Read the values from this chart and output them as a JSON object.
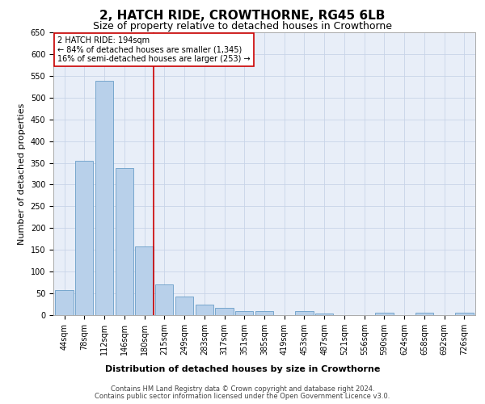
{
  "title": "2, HATCH RIDE, CROWTHORNE, RG45 6LB",
  "subtitle": "Size of property relative to detached houses in Crowthorne",
  "xlabel": "Distribution of detached houses by size in Crowthorne",
  "ylabel": "Number of detached properties",
  "categories": [
    "44sqm",
    "78sqm",
    "112sqm",
    "146sqm",
    "180sqm",
    "215sqm",
    "249sqm",
    "283sqm",
    "317sqm",
    "351sqm",
    "385sqm",
    "419sqm",
    "453sqm",
    "487sqm",
    "521sqm",
    "556sqm",
    "590sqm",
    "624sqm",
    "658sqm",
    "692sqm",
    "726sqm"
  ],
  "values": [
    58,
    355,
    538,
    338,
    157,
    70,
    42,
    25,
    16,
    10,
    10,
    0,
    10,
    3,
    0,
    0,
    5,
    0,
    5,
    0,
    5
  ],
  "bar_color": "#b8d0ea",
  "bar_edge_color": "#6a9ec8",
  "highlight_index": 4,
  "highlight_line_color": "#cc0000",
  "annotation_text": "2 HATCH RIDE: 194sqm\n← 84% of detached houses are smaller (1,345)\n16% of semi-detached houses are larger (253) →",
  "annotation_box_color": "#ffffff",
  "annotation_box_edge_color": "#cc0000",
  "ylim": [
    0,
    650
  ],
  "yticks": [
    0,
    50,
    100,
    150,
    200,
    250,
    300,
    350,
    400,
    450,
    500,
    550,
    600,
    650
  ],
  "footer_line1": "Contains HM Land Registry data © Crown copyright and database right 2024.",
  "footer_line2": "Contains public sector information licensed under the Open Government Licence v3.0.",
  "background_color": "#ffffff",
  "plot_bg_color": "#e8eef8",
  "grid_color": "#c8d4e8",
  "title_fontsize": 11,
  "subtitle_fontsize": 9,
  "xlabel_fontsize": 8,
  "ylabel_fontsize": 8,
  "tick_fontsize": 7,
  "annotation_fontsize": 7,
  "footer_fontsize": 6
}
